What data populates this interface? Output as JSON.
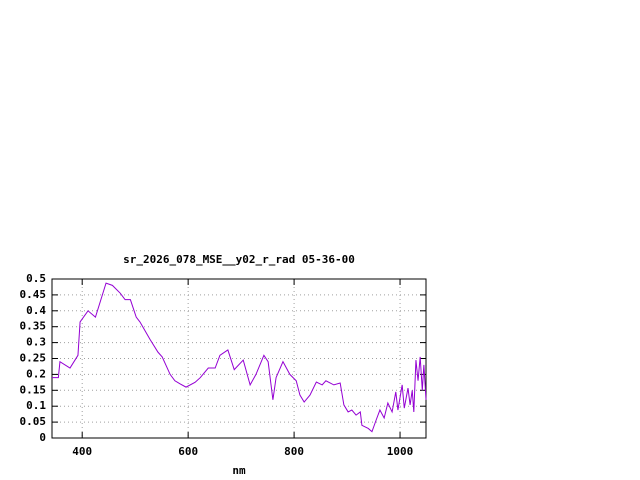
{
  "chart_data": {
    "type": "line",
    "title": "sr_2026_078_MSE__y02_r_rad 05-36-00",
    "x_label": "nm",
    "x": [
      343,
      355,
      358,
      377,
      392,
      396,
      411,
      425,
      445,
      457,
      472,
      481,
      491,
      502,
      509,
      528,
      543,
      551,
      566,
      575,
      585,
      596,
      613,
      623,
      638,
      651,
      660,
      675,
      687,
      704,
      717,
      728,
      743,
      751,
      760,
      766,
      779,
      792,
      804,
      811,
      819,
      830,
      842,
      853,
      860,
      875,
      887,
      894,
      902,
      909,
      917,
      925,
      928,
      940,
      947,
      955,
      962,
      970,
      977,
      985,
      992,
      996,
      1004,
      1008,
      1015,
      1019,
      1023,
      1026,
      1030,
      1034,
      1038,
      1042,
      1045,
      1049
    ],
    "series": [
      {
        "color": "#9400d3",
        "values": [
          0.19,
          0.19,
          0.24,
          0.22,
          0.26,
          0.365,
          0.4,
          0.38,
          0.487,
          0.48,
          0.455,
          0.435,
          0.435,
          0.38,
          0.365,
          0.31,
          0.27,
          0.255,
          0.2,
          0.18,
          0.17,
          0.16,
          0.175,
          0.19,
          0.22,
          0.22,
          0.26,
          0.277,
          0.215,
          0.245,
          0.167,
          0.2,
          0.26,
          0.24,
          0.12,
          0.19,
          0.24,
          0.2,
          0.18,
          0.135,
          0.113,
          0.135,
          0.176,
          0.167,
          0.18,
          0.167,
          0.173,
          0.104,
          0.082,
          0.088,
          0.072,
          0.082,
          0.04,
          0.03,
          0.02,
          0.057,
          0.088,
          0.063,
          0.11,
          0.082,
          0.145,
          0.088,
          0.167,
          0.094,
          0.157,
          0.104,
          0.15,
          0.082,
          0.245,
          0.18,
          0.255,
          0.15,
          0.23,
          0.12
        ]
      }
    ],
    "xlim": [
      343,
      1049
    ],
    "xticks": [
      400,
      600,
      800,
      1000
    ],
    "ylim": [
      0,
      0.5
    ],
    "yticks": [
      0,
      0.05,
      0.1,
      0.15,
      0.2,
      0.25,
      0.3,
      0.35,
      0.4,
      0.45,
      0.5
    ],
    "grid": true
  }
}
